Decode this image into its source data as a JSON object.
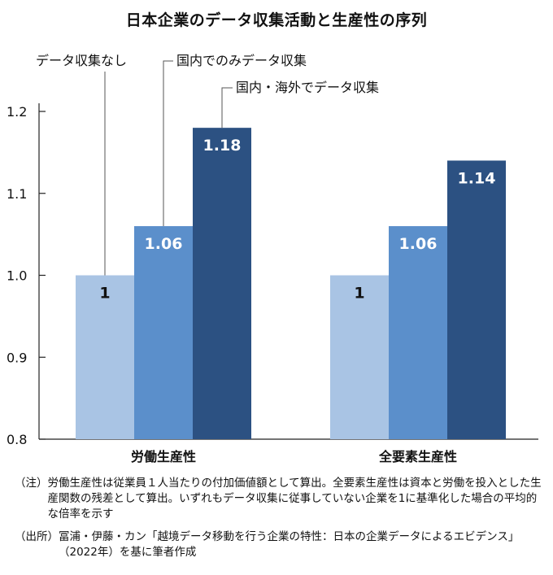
{
  "chart_data": {
    "type": "bar",
    "title": "日本企業のデータ収集活動と生産性の序列",
    "categories": [
      "労働生産性",
      "全要素生産性"
    ],
    "series": [
      {
        "name": "データ収集なし",
        "values": [
          1,
          1
        ],
        "color": "#a9c4e4"
      },
      {
        "name": "国内でのみデータ収集",
        "values": [
          1.06,
          1.06
        ],
        "color": "#5b8fcb"
      },
      {
        "name": "国内・海外でデータ収集",
        "values": [
          1.18,
          1.14
        ],
        "color": "#2c5182"
      }
    ],
    "value_labels": [
      [
        "1",
        "1.06",
        "1.18"
      ],
      [
        "1",
        "1.06",
        "1.14"
      ]
    ],
    "ylim": [
      0.8,
      1.2
    ],
    "yticks": [
      "0.8",
      "0.9",
      "1.0",
      "1.1",
      "1.2"
    ],
    "xlabel": "",
    "ylabel": "",
    "grid": false,
    "legend_placement": "top-left-annotated"
  },
  "notes": {
    "note_label": "（注）",
    "note_text": "労働生産性は従業員１人当たりの付加価値額として算出。全要素生産性は資本と労働を投入とした生産関数の残差として算出。いずれもデータ収集に従事していない企業を1に基準化した場合の平均的な倍率を示す",
    "source_label": "（出所）",
    "source_text": "冨浦・伊藤・カン「越境データ移動を行う企業の特性：日本の企業データによるエビデンス」（2022年）を基に筆者作成"
  }
}
